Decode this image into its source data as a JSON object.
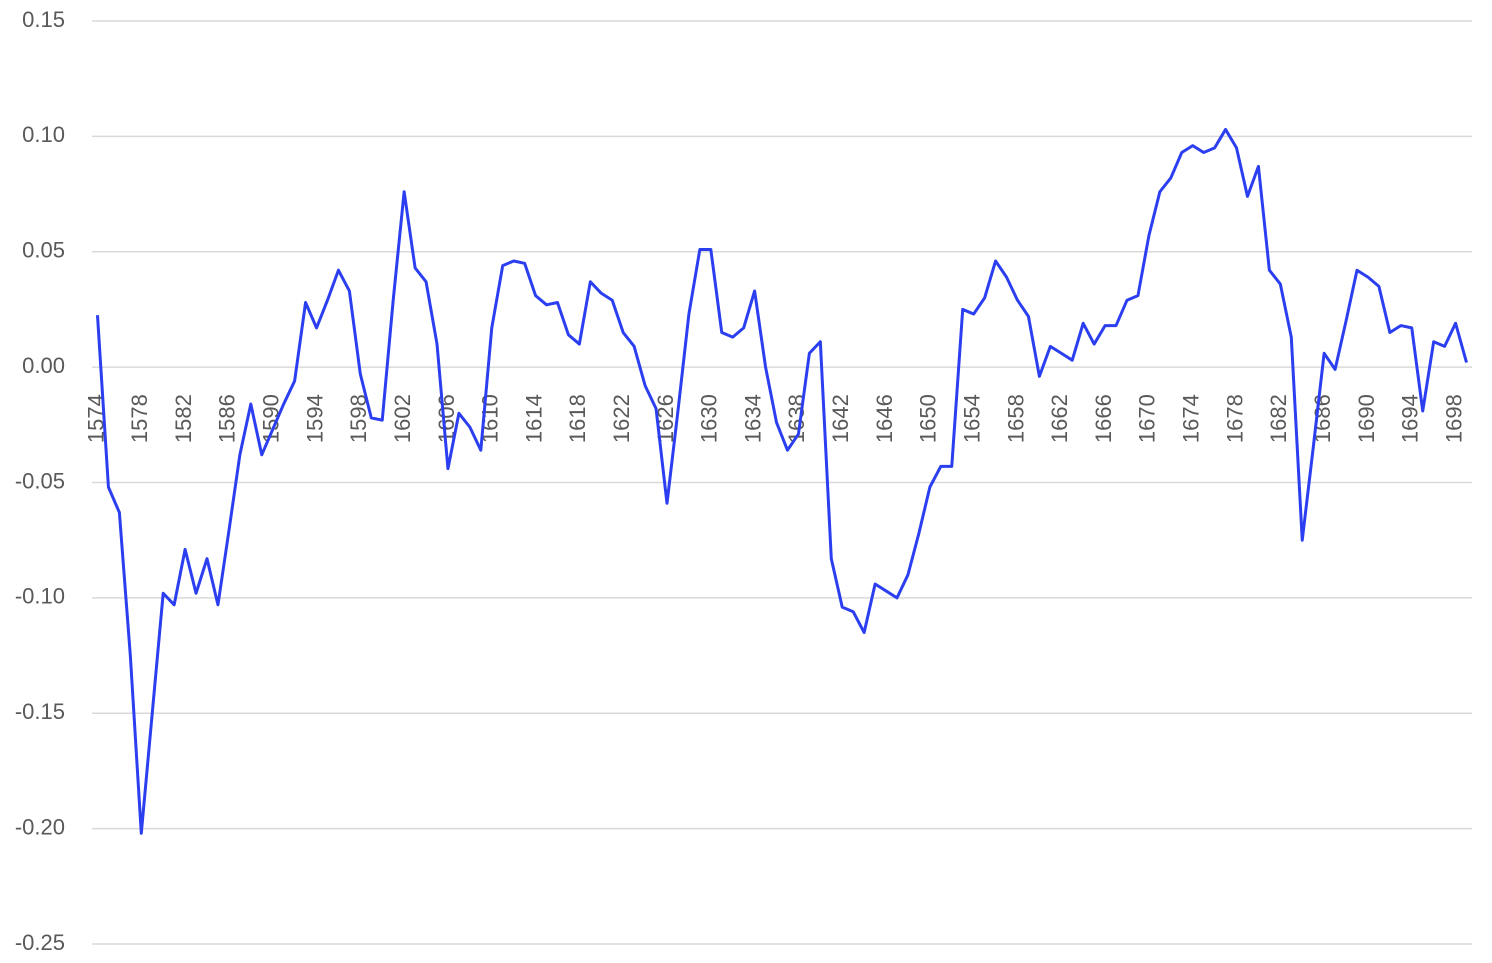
{
  "chart_data": {
    "type": "line",
    "x": [
      1574,
      1575,
      1576,
      1577,
      1578,
      1579,
      1580,
      1581,
      1582,
      1583,
      1584,
      1585,
      1586,
      1587,
      1588,
      1589,
      1590,
      1591,
      1592,
      1593,
      1594,
      1595,
      1596,
      1597,
      1598,
      1599,
      1600,
      1601,
      1602,
      1603,
      1604,
      1605,
      1606,
      1607,
      1608,
      1609,
      1610,
      1611,
      1612,
      1613,
      1614,
      1615,
      1616,
      1617,
      1618,
      1619,
      1620,
      1621,
      1622,
      1623,
      1624,
      1625,
      1626,
      1627,
      1628,
      1629,
      1630,
      1631,
      1632,
      1633,
      1634,
      1635,
      1636,
      1637,
      1638,
      1639,
      1640,
      1641,
      1642,
      1643,
      1644,
      1645,
      1646,
      1647,
      1648,
      1649,
      1650,
      1651,
      1652,
      1653,
      1654,
      1655,
      1656,
      1657,
      1658,
      1659,
      1660,
      1661,
      1662,
      1663,
      1664,
      1665,
      1666,
      1667,
      1668,
      1669,
      1670,
      1671,
      1672,
      1673,
      1674,
      1675,
      1676,
      1677,
      1678,
      1679,
      1680,
      1681,
      1682,
      1683,
      1684,
      1685,
      1686,
      1687,
      1688,
      1689,
      1690,
      1691,
      1692,
      1693,
      1694,
      1695,
      1696,
      1697,
      1698,
      1699
    ],
    "series": [
      {
        "color": "#2b3ff0",
        "values": [
          0.0225,
          -0.052,
          -0.063,
          -0.125,
          -0.202,
          -0.15,
          -0.098,
          -0.103,
          -0.079,
          -0.098,
          -0.083,
          -0.103,
          -0.071,
          -0.038,
          -0.016,
          -0.038,
          -0.027,
          -0.016,
          -0.006,
          0.028,
          0.017,
          0.029,
          0.042,
          0.033,
          -0.003,
          -0.022,
          -0.023,
          0.029,
          0.076,
          0.043,
          0.037,
          0.01,
          -0.044,
          -0.02,
          -0.026,
          -0.036,
          0.017,
          0.044,
          0.046,
          0.045,
          0.031,
          0.027,
          0.028,
          0.014,
          0.01,
          0.037,
          0.032,
          0.029,
          0.015,
          0.009,
          -0.008,
          -0.018,
          -0.059,
          -0.019,
          0.023,
          0.051,
          0.051,
          0.015,
          0.013,
          0.017,
          0.033,
          0.0,
          -0.024,
          -0.036,
          -0.029,
          0.006,
          0.011,
          -0.083,
          -0.104,
          -0.106,
          -0.115,
          -0.094,
          -0.097,
          -0.1,
          -0.09,
          -0.072,
          -0.052,
          -0.043,
          -0.043,
          0.025,
          0.023,
          0.03,
          0.046,
          0.039,
          0.029,
          0.022,
          -0.004,
          0.009,
          0.006,
          0.003,
          0.019,
          0.01,
          0.018,
          0.018,
          0.029,
          0.031,
          0.057,
          0.076,
          0.082,
          0.093,
          0.096,
          0.093,
          0.095,
          0.103,
          0.095,
          0.074,
          0.087,
          0.042,
          0.036,
          0.013,
          -0.075,
          -0.035,
          0.006,
          -0.001,
          0.02,
          0.042,
          0.039,
          0.035,
          0.015,
          0.018,
          0.017,
          -0.019,
          0.011,
          0.009,
          0.019,
          0.002
        ]
      }
    ],
    "xlim": [
      1573.5,
      1699.5
    ],
    "xticks": [
      1574,
      1578,
      1582,
      1586,
      1590,
      1594,
      1598,
      1602,
      1606,
      1610,
      1614,
      1618,
      1622,
      1626,
      1630,
      1634,
      1638,
      1642,
      1646,
      1650,
      1654,
      1658,
      1662,
      1666,
      1670,
      1674,
      1678,
      1682,
      1686,
      1690,
      1694,
      1698
    ],
    "ylim": [
      -0.25,
      0.15
    ],
    "yticks": [
      0.15,
      {
        "value": 0.1,
        "label": "0.10"
      },
      0.05,
      {
        "value": 0,
        "label": "0.00"
      },
      -0.05,
      {
        "value": -0.1,
        "label": "-0.10"
      },
      -0.15,
      {
        "value": -0.2,
        "label": "-0.20"
      },
      -0.25
    ],
    "grid": true
  }
}
